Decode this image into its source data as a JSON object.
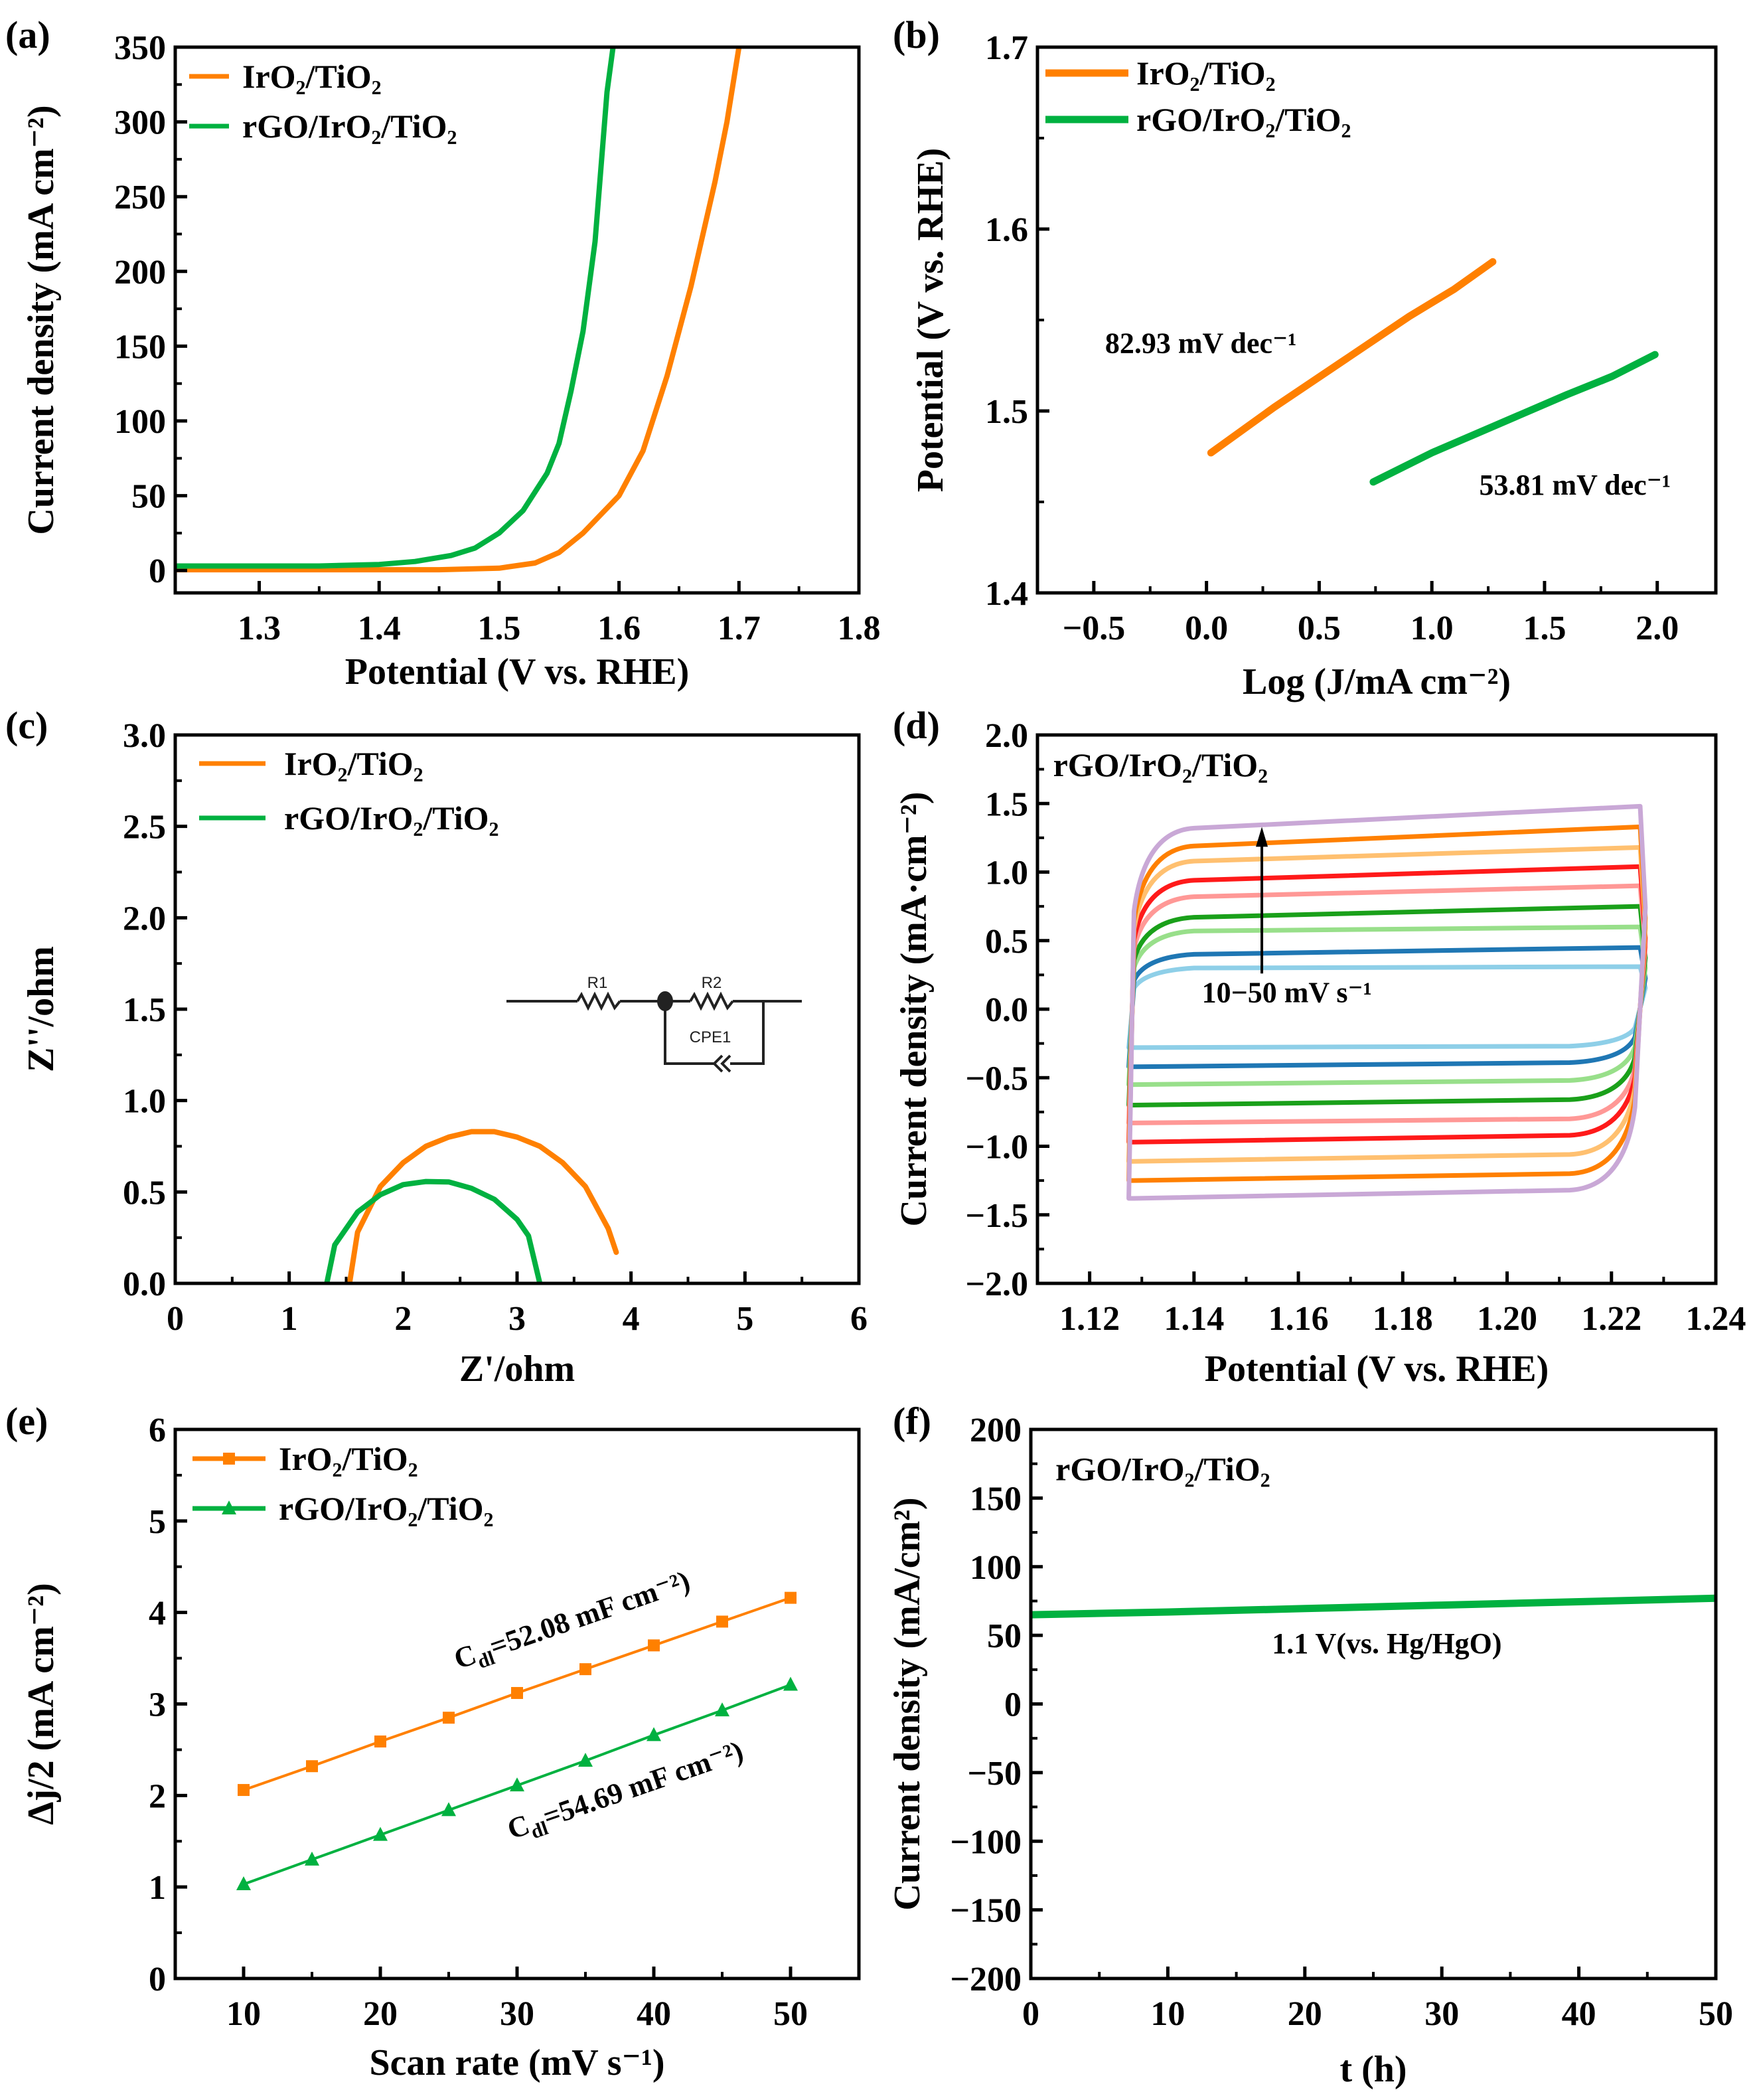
{
  "panel_labels": [
    "(a)",
    "(b)",
    "(c)",
    "(d)",
    "(e)",
    "(f)"
  ],
  "chart_data": [
    {
      "panel": "(a)",
      "type": "line",
      "xlabel": "Potential (V vs. RHE)",
      "ylabel": "Current density (mA cm⁻²)",
      "xlim": [
        1.23,
        1.8
      ],
      "ylim": [
        -15,
        350
      ],
      "xticks": [
        1.3,
        1.4,
        1.5,
        1.6,
        1.7,
        1.8
      ],
      "xtick_labels": [
        "1.3",
        "1.4",
        "1.5",
        "1.6",
        "1.7",
        "1.8"
      ],
      "yticks": [
        0,
        50,
        100,
        150,
        200,
        250,
        300,
        350
      ],
      "ytick_labels": [
        "0",
        "50",
        "100",
        "150",
        "200",
        "250",
        "300",
        "350"
      ],
      "legend": "top-left",
      "series": [
        {
          "name": "IrO₂/TiO₂",
          "color": "#FF8000",
          "x": [
            1.23,
            1.45,
            1.5,
            1.53,
            1.55,
            1.57,
            1.6,
            1.62,
            1.64,
            1.66,
            1.68,
            1.69,
            1.7
          ],
          "y": [
            0.5,
            0.5,
            1.5,
            5,
            12,
            25,
            50,
            80,
            130,
            190,
            260,
            300,
            350
          ]
        },
        {
          "name": "rGO/IrO₂/TiO₂",
          "color": "#00B140",
          "x": [
            1.23,
            1.35,
            1.4,
            1.43,
            1.46,
            1.48,
            1.5,
            1.52,
            1.54,
            1.55,
            1.56,
            1.57,
            1.58,
            1.585,
            1.59,
            1.595
          ],
          "y": [
            3,
            3,
            4,
            6,
            10,
            15,
            25,
            40,
            65,
            85,
            120,
            160,
            220,
            270,
            320,
            350
          ]
        }
      ]
    },
    {
      "panel": "(b)",
      "type": "line",
      "xlabel": "Log (J/mA cm⁻²)",
      "ylabel": "Potential (V vs. RHE)",
      "xlim": [
        -0.75,
        2.26
      ],
      "ylim": [
        1.4,
        1.7
      ],
      "xticks": [
        -0.5,
        0,
        0.5,
        1,
        1.5,
        2
      ],
      "xtick_labels": [
        "−0.5",
        "0.0",
        "0.5",
        "1.0",
        "1.5",
        "2.0"
      ],
      "yticks": [
        1.4,
        1.5,
        1.6,
        1.7
      ],
      "ytick_labels": [
        "1.4",
        "1.5",
        "1.6",
        "1.7"
      ],
      "legend": "top-left",
      "series": [
        {
          "name": "IrO₂/TiO₂",
          "color": "#FF8000",
          "x": [
            0.02,
            0.3,
            0.6,
            0.9,
            1.1,
            1.27
          ],
          "y": [
            1.477,
            1.502,
            1.527,
            1.552,
            1.567,
            1.582
          ]
        },
        {
          "name": "rGO/IrO₂/TiO₂",
          "color": "#00B140",
          "x": [
            0.74,
            1.0,
            1.3,
            1.6,
            1.8,
            1.99
          ],
          "y": [
            1.461,
            1.477,
            1.493,
            1.509,
            1.519,
            1.531
          ]
        }
      ],
      "annotations": [
        "82.93 mV dec⁻¹",
        "53.81 mV dec⁻¹"
      ]
    },
    {
      "panel": "(c)",
      "type": "line",
      "xlabel": "Z'/ohm",
      "ylabel": "Z''/ohm",
      "xlim": [
        0,
        6
      ],
      "ylim": [
        0,
        3
      ],
      "xticks": [
        0,
        1,
        2,
        3,
        4,
        5,
        6
      ],
      "xtick_labels": [
        "0",
        "1",
        "2",
        "3",
        "4",
        "5",
        "6"
      ],
      "yticks": [
        0,
        0.5,
        1,
        1.5,
        2,
        2.5,
        3
      ],
      "ytick_labels": [
        "0.0",
        "0.5",
        "1.0",
        "1.5",
        "2.0",
        "2.5",
        "3.0"
      ],
      "legend": "top-left",
      "series": [
        {
          "name": "IrO₂/TiO₂",
          "color": "#FF8000",
          "x": [
            1.53,
            1.6,
            1.8,
            2.0,
            2.2,
            2.4,
            2.6,
            2.8,
            3.0,
            3.2,
            3.4,
            3.6,
            3.8,
            3.87
          ],
          "y": [
            0,
            0.28,
            0.53,
            0.66,
            0.75,
            0.8,
            0.83,
            0.83,
            0.8,
            0.75,
            0.66,
            0.53,
            0.3,
            0.17
          ]
        },
        {
          "name": "rGO/IrO₂/TiO₂",
          "color": "#00B140",
          "x": [
            1.33,
            1.4,
            1.6,
            1.8,
            2.0,
            2.2,
            2.4,
            2.6,
            2.8,
            3.0,
            3.1,
            3.2
          ],
          "y": [
            0,
            0.21,
            0.39,
            0.485,
            0.54,
            0.557,
            0.555,
            0.52,
            0.46,
            0.35,
            0.26,
            0
          ]
        }
      ],
      "circuit": {
        "r1": "R1",
        "r2": "R2",
        "cpe": "CPE1"
      }
    },
    {
      "panel": "(d)",
      "type": "line",
      "xlabel": "Potential (V vs. RHE)",
      "ylabel": "Current density (mA·cm⁻²)",
      "xlim": [
        1.11,
        1.24
      ],
      "ylim": [
        -2,
        2
      ],
      "xticks": [
        1.12,
        1.14,
        1.16,
        1.18,
        1.2,
        1.22,
        1.24
      ],
      "xtick_labels": [
        "1.12",
        "1.14",
        "1.16",
        "1.18",
        "1.20",
        "1.22",
        "1.24"
      ],
      "yticks": [
        -2,
        -1.5,
        -1,
        -0.5,
        0,
        0.5,
        1,
        1.5,
        2
      ],
      "ytick_labels": [
        "−2.0",
        "−1.5",
        "−1.0",
        "−0.5",
        "0.0",
        "0.5",
        "1.0",
        "1.5",
        "2.0"
      ],
      "title": "rGO/IrO₂/TiO₂",
      "annotation": "10−50 mV s⁻¹",
      "series": [
        {
          "scan_rate": 10,
          "color": "#8ECFE8",
          "anodic": [
            0.28,
            0.31
          ],
          "cathodic": [
            -0.28,
            -0.25
          ]
        },
        {
          "scan_rate": 15,
          "color": "#1F77B4",
          "anodic": [
            0.38,
            0.45
          ],
          "cathodic": [
            -0.42,
            -0.37
          ]
        },
        {
          "scan_rate": 20,
          "color": "#98DF8A",
          "anodic": [
            0.55,
            0.6
          ],
          "cathodic": [
            -0.55,
            -0.5
          ]
        },
        {
          "scan_rate": 25,
          "color": "#1AA01A",
          "anodic": [
            0.65,
            0.75
          ],
          "cathodic": [
            -0.7,
            -0.64
          ]
        },
        {
          "scan_rate": 30,
          "color": "#FF9896",
          "anodic": [
            0.8,
            0.9
          ],
          "cathodic": [
            -0.83,
            -0.78
          ]
        },
        {
          "scan_rate": 35,
          "color": "#FF1A1A",
          "anodic": [
            0.92,
            1.04
          ],
          "cathodic": [
            -0.97,
            -0.9
          ]
        },
        {
          "scan_rate": 40,
          "color": "#FFC070",
          "anodic": [
            1.06,
            1.18
          ],
          "cathodic": [
            -1.11,
            -1.04
          ]
        },
        {
          "scan_rate": 45,
          "color": "#FF8000",
          "anodic": [
            1.17,
            1.33
          ],
          "cathodic": [
            -1.25,
            -1.18
          ]
        },
        {
          "scan_rate": 50,
          "color": "#C9A8D6",
          "anodic": [
            1.3,
            1.48
          ],
          "cathodic": [
            -1.38,
            -1.3
          ]
        }
      ]
    },
    {
      "panel": "(e)",
      "type": "scatter",
      "xlabel": "Scan rate (mV s⁻¹)",
      "ylabel": "Δj/2 (mA cm⁻²)",
      "xlim": [
        5,
        55
      ],
      "ylim": [
        0,
        6
      ],
      "xticks": [
        10,
        20,
        30,
        40,
        50
      ],
      "xtick_labels": [
        "10",
        "20",
        "30",
        "40",
        "50"
      ],
      "yticks": [
        0,
        1,
        2,
        3,
        4,
        5,
        6
      ],
      "ytick_labels": [
        "0",
        "1",
        "2",
        "3",
        "4",
        "5",
        "6"
      ],
      "legend": "top-left",
      "x": [
        10,
        15,
        20,
        25,
        30,
        35,
        40,
        45,
        50
      ],
      "series": [
        {
          "name": "IrO₂/TiO₂",
          "color": "#FF8000",
          "marker": "square",
          "y": [
            2.06,
            2.32,
            2.59,
            2.85,
            3.12,
            3.38,
            3.64,
            3.9,
            4.16
          ]
        },
        {
          "name": "rGO/IrO₂/TiO₂",
          "color": "#00B140",
          "marker": "triangle",
          "y": [
            1.03,
            1.3,
            1.57,
            1.84,
            2.11,
            2.38,
            2.66,
            2.93,
            3.21
          ]
        }
      ],
      "annotations": [
        {
          "symbol": "C",
          "sub": "dl",
          "text": "=52.08 mF cm⁻²)"
        },
        {
          "symbol": "C",
          "sub": "dl",
          "text": "=54.69 mF cm⁻²)"
        }
      ]
    },
    {
      "panel": "(f)",
      "type": "line",
      "xlabel": "t (h)",
      "ylabel": "Current density (mA/cm²)",
      "xlim": [
        0,
        50
      ],
      "ylim": [
        -200,
        200
      ],
      "xticks": [
        0,
        10,
        20,
        30,
        40,
        50
      ],
      "xtick_labels": [
        "0",
        "10",
        "20",
        "30",
        "40",
        "50"
      ],
      "yticks": [
        -200,
        -150,
        -100,
        -50,
        0,
        50,
        100,
        150,
        200
      ],
      "ytick_labels": [
        "−200",
        "−150",
        "−100",
        "−50",
        "0",
        "50",
        "100",
        "150",
        "200"
      ],
      "title": "rGO/IrO₂/TiO₂",
      "annotation": "1.1 V(vs. Hg/HgO)",
      "series": [
        {
          "name": "rGO/IrO₂/TiO₂",
          "color": "#00B140",
          "x": [
            0,
            10,
            20,
            30,
            40,
            50
          ],
          "y": [
            65,
            67,
            69.5,
            72,
            74.5,
            77
          ]
        }
      ]
    }
  ]
}
